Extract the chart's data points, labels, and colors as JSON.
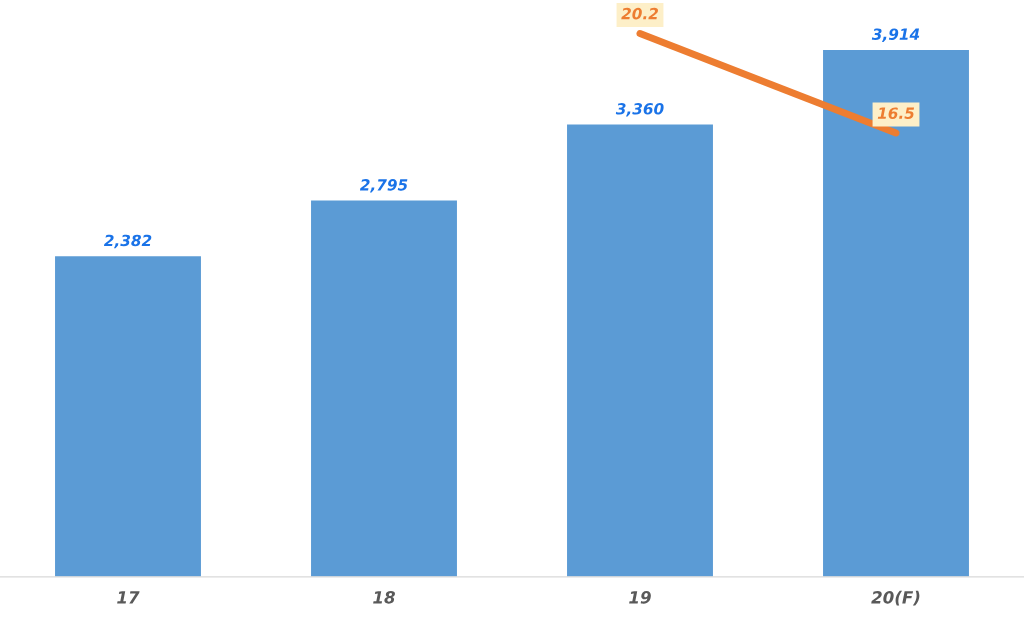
{
  "chart_data": {
    "type": "bar",
    "categories": [
      "17",
      "18",
      "19",
      "20(F)"
    ],
    "series": [
      {
        "color": "#5b9bd5",
        "values": [
          2382,
          2795,
          3360,
          3914
        ],
        "value_labels": [
          "2,382",
          "2,795",
          "3,360",
          "3,914"
        ]
      },
      {
        "type": "line",
        "axis": "y2",
        "color": "#ed7d31",
        "values": [
          null,
          null,
          20.2,
          16.5
        ],
        "value_labels": [
          null,
          null,
          "20.2",
          "16.5"
        ]
      }
    ],
    "tick_labels": "x",
    "marker": "none",
    "line_style": "solid"
  }
}
